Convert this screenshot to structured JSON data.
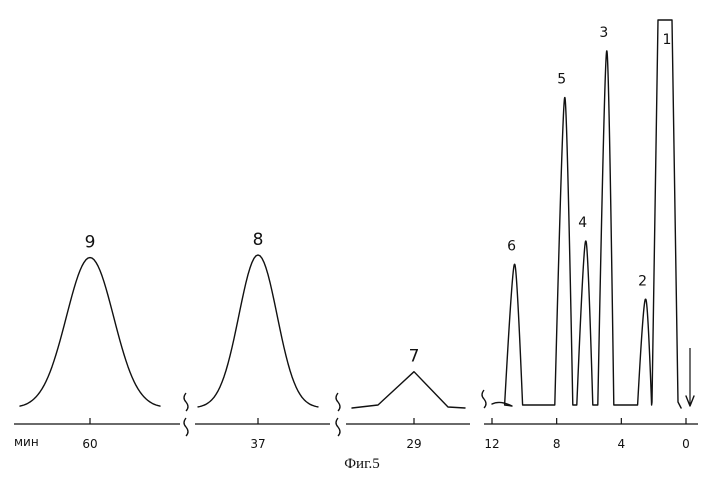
{
  "caption": "Фиг.5",
  "unit_label": "мин",
  "chart_data": [
    {
      "type": "line",
      "segment": "retention-window-peak-9",
      "x_tick_labels": [
        "60"
      ],
      "x_ticks": [
        60
      ],
      "peaks": [
        {
          "label": "9",
          "x": 60,
          "height": 0.58
        }
      ]
    },
    {
      "type": "line",
      "segment": "retention-window-peak-8",
      "x_tick_labels": [
        "37"
      ],
      "x_ticks": [
        37
      ],
      "peaks": [
        {
          "label": "8",
          "x": 37,
          "height": 0.59
        }
      ]
    },
    {
      "type": "line",
      "segment": "retention-window-peak-7",
      "x_tick_labels": [
        "29"
      ],
      "x_ticks": [
        29
      ],
      "peaks": [
        {
          "label": "7",
          "x": 29,
          "height": 0.14
        }
      ]
    },
    {
      "type": "line",
      "segment": "retention-window-peaks-1-6",
      "x_axis": "reversed",
      "x_tick_labels": [
        "12",
        "8",
        "4",
        "0"
      ],
      "x_ticks": [
        12,
        8,
        4,
        0
      ],
      "peaks": [
        {
          "label": "6",
          "x": 10.6,
          "height": 0.37
        },
        {
          "label": "5",
          "x": 7.5,
          "height": 0.8
        },
        {
          "label": "4",
          "x": 6.2,
          "height": 0.43
        },
        {
          "label": "3",
          "x": 4.9,
          "height": 0.92
        },
        {
          "label": "2",
          "x": 2.5,
          "height": 0.28
        },
        {
          "label": "1",
          "x": 1.3,
          "height": 1.0
        }
      ],
      "injection_marker": {
        "x": 0
      }
    }
  ]
}
